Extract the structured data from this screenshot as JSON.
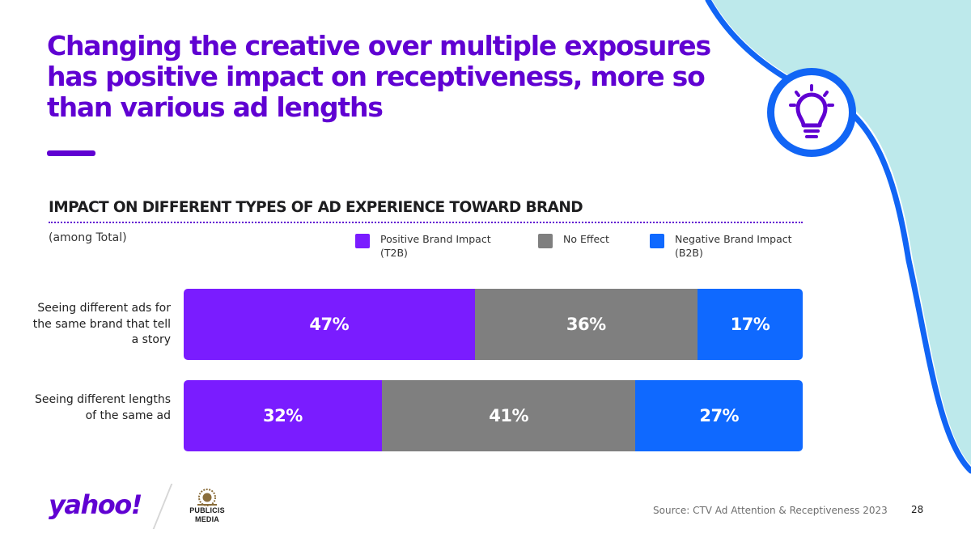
{
  "title": "Changing the creative over multiple exposures has positive impact on receptiveness, more so than various ad lengths",
  "colors": {
    "brand_purple": "#6001d2",
    "positive": "#7a1cff",
    "neutral": "#7f7f7f",
    "negative": "#0f69ff",
    "deco_fill": "#bde9eb",
    "deco_stroke": "#1165f5"
  },
  "icons": {
    "badge": "lightbulb-icon"
  },
  "chart_data": {
    "type": "bar",
    "orientation": "horizontal",
    "stacked": true,
    "title": "IMPACT ON DIFFERENT TYPES OF AD EXPERIENCE TOWARD BRAND",
    "note": "(among Total)",
    "categories": [
      "Seeing different ads for the same brand that tell a story",
      "Seeing different lengths of the same ad"
    ],
    "series": [
      {
        "name": "Positive Brand Impact (T2B)",
        "color": "#7a1cff",
        "values": [
          47,
          32
        ],
        "labels": [
          "47%",
          "32%"
        ]
      },
      {
        "name": "No Effect",
        "color": "#7f7f7f",
        "values": [
          36,
          41
        ],
        "labels": [
          "36%",
          "41%"
        ]
      },
      {
        "name": "Negative Brand Impact (B2B)",
        "color": "#0f69ff",
        "values": [
          17,
          27
        ],
        "labels": [
          "17%",
          "27%"
        ]
      }
    ],
    "xlim": [
      0,
      100
    ],
    "legend_position": "top-right",
    "grid": false
  },
  "footer": {
    "logo_text": "yahoo!",
    "partner_logo_text": "PUBLICIS MEDIA",
    "source": "Source: CTV Ad Attention & Receptiveness 2023",
    "page_number": "28"
  }
}
